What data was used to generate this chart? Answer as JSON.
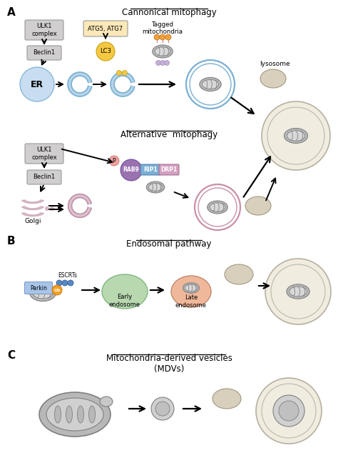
{
  "bg_color": "#ffffff",
  "panel_A_label": "A",
  "panel_B_label": "B",
  "panel_C_label": "C",
  "title_canonical": "Cannonical mitophagy",
  "title_alternative": "Alternative  mitophagy",
  "title_endosomal": "Endosomal pathway",
  "title_mdv": "Mitochondria-derived vesicles\n(MDVs)",
  "colors": {
    "ulk_box": "#d0cece",
    "beclin_box": "#d0cece",
    "atg_box": "#fce8b8",
    "lc3_circle": "#f5c842",
    "er_circle": "#c8ddf0",
    "golgi_color": "#c9a0b4",
    "rab9_color": "#9b72b0",
    "rip1_color": "#7bafd4",
    "drp1_color": "#d4a0c0",
    "p_circle": "#f4a0a0",
    "mito_outer": "#b8b8b8",
    "mito_inner_fill": "#d8d8d8",
    "autophagosome_blue": "#7ab0d4",
    "autophagosome_pink": "#c890a8",
    "lysosome_color": "#d8d0bc",
    "late_endo_color": "#f0b89a",
    "early_endo_color": "#b8d8b0",
    "parkin_color": "#a8c4e8",
    "ub_color": "#f5a020",
    "escrt_color": "#5888c0",
    "outer_cell_fill": "#f0ece0",
    "outer_cell_border": "#b8b0a0",
    "arrow_color": "#111111"
  }
}
